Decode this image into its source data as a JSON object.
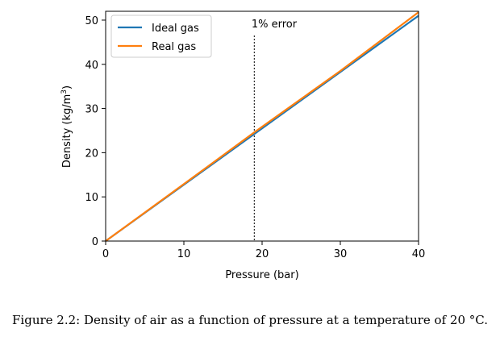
{
  "chart_data": {
    "type": "line",
    "xlabel": "Pressure (bar)",
    "ylabel_prefix": "Density (kg/m",
    "ylabel_sup": "3",
    "ylabel_suffix": ")",
    "xlim": [
      0,
      40
    ],
    "ylim": [
      0,
      52
    ],
    "xticks": [
      0,
      10,
      20,
      30,
      40
    ],
    "yticks": [
      0,
      10,
      20,
      30,
      40,
      50
    ],
    "grid": false,
    "legend_position": "top-left",
    "series": [
      {
        "name": "Ideal gas",
        "color": "#1f77b4",
        "x": [
          0,
          40
        ],
        "y": [
          0,
          51.0
        ]
      },
      {
        "name": "Real gas",
        "color": "#ff7f0e",
        "x": [
          0,
          10,
          19,
          30,
          40
        ],
        "y": [
          0,
          12.9,
          24.6,
          38.5,
          51.8
        ]
      }
    ],
    "annotations": [
      {
        "type": "vline",
        "x": 19,
        "label": "1% error",
        "color": "#000000",
        "style": "dashed"
      }
    ]
  },
  "caption": "Figure 2.2: Density of air as a function of pressure at a temperature of 20 °C."
}
